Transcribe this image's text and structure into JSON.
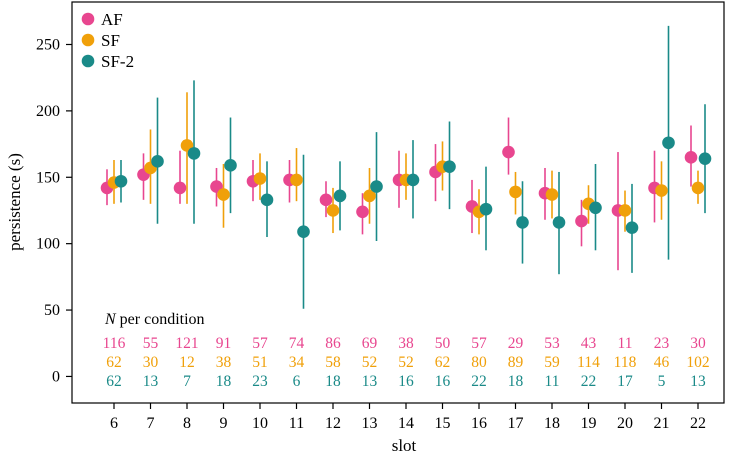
{
  "chart_data": {
    "type": "scatter",
    "title": "",
    "xlabel": "slot",
    "ylabel": "persistence (s)",
    "ylim": [
      -20,
      282
    ],
    "yticks": [
      0,
      50,
      100,
      150,
      200,
      250
    ],
    "x": [
      6,
      7,
      8,
      9,
      10,
      11,
      12,
      13,
      14,
      15,
      16,
      17,
      18,
      19,
      20,
      21,
      22
    ],
    "series": [
      {
        "name": "AF",
        "color": "#e8468f",
        "values": [
          142,
          152,
          142,
          143,
          147,
          148,
          133,
          124,
          148,
          154,
          128,
          169,
          138,
          117,
          125,
          142,
          165
        ],
        "lower": [
          129,
          133,
          130,
          128,
          132,
          131,
          120,
          107,
          127,
          132,
          108,
          152,
          118,
          98,
          80,
          116,
          143
        ],
        "upper": [
          156,
          168,
          170,
          157,
          163,
          163,
          147,
          138,
          170,
          175,
          148,
          195,
          157,
          133,
          169,
          170,
          189
        ],
        "n": [
          116,
          55,
          121,
          91,
          57,
          74,
          86,
          69,
          38,
          50,
          57,
          29,
          53,
          43,
          11,
          23,
          30
        ]
      },
      {
        "name": "SF",
        "color": "#f0a00a",
        "values": [
          146,
          157,
          174,
          137,
          149,
          148,
          125,
          136,
          148,
          158,
          124,
          139,
          137,
          130,
          125,
          140,
          142
        ],
        "lower": [
          130,
          130,
          130,
          112,
          133,
          132,
          108,
          115,
          133,
          140,
          107,
          122,
          119,
          115,
          109,
          118,
          130
        ],
        "upper": [
          163,
          186,
          214,
          160,
          168,
          172,
          142,
          157,
          168,
          177,
          141,
          154,
          155,
          144,
          140,
          162,
          155
        ],
        "n": [
          62,
          30,
          12,
          38,
          51,
          34,
          58,
          52,
          52,
          62,
          80,
          89,
          59,
          114,
          118,
          46,
          102
        ]
      },
      {
        "name": "SF-2",
        "color": "#1a8a88",
        "values": [
          147,
          162,
          168,
          159,
          133,
          109,
          136,
          143,
          148,
          158,
          126,
          116,
          116,
          127,
          112,
          176,
          164
        ],
        "lower": [
          131,
          115,
          115,
          123,
          105,
          51,
          110,
          102,
          119,
          126,
          95,
          85,
          77,
          95,
          78,
          88,
          123
        ],
        "upper": [
          163,
          210,
          223,
          195,
          162,
          167,
          162,
          184,
          178,
          192,
          158,
          147,
          154,
          160,
          145,
          264,
          205
        ],
        "n": [
          62,
          13,
          7,
          18,
          23,
          6,
          18,
          13,
          16,
          16,
          22,
          18,
          11,
          22,
          17,
          5,
          13
        ]
      }
    ],
    "n_title_italic": "N",
    "n_title_rest": " per condition",
    "legend_position": "top-left",
    "grid": false
  }
}
